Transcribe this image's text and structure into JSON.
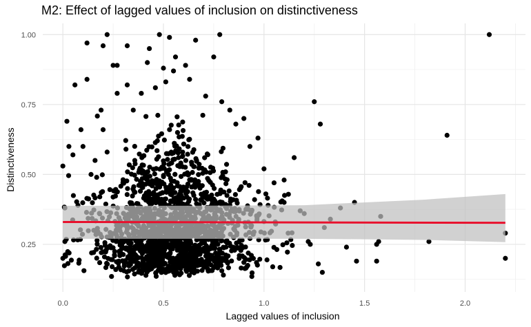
{
  "chart_data": {
    "type": "scatter",
    "title": "M2: Effect of lagged values of inclusion on distinctiveness",
    "xlabel": "Lagged values of inclusion",
    "ylabel": "Distinctiveness",
    "xlim": [
      -0.1,
      2.3
    ],
    "ylim": [
      0.08,
      1.04
    ],
    "xticks": [
      0.0,
      0.5,
      1.0,
      1.5,
      2.0
    ],
    "xtick_labels": [
      "0.0",
      "0.5",
      "1.0",
      "1.5",
      "2.0"
    ],
    "yticks": [
      0.25,
      0.5,
      0.75,
      1.0
    ],
    "ytick_labels": [
      "0.25",
      "0.50",
      "0.75",
      "1.00"
    ],
    "grid": true,
    "theme": "minimal",
    "point_color": "#000000",
    "fit_line_color": "#e8112d",
    "ci_band_color": "#bfbfbf",
    "fit_line": {
      "x": [
        0.0,
        2.2
      ],
      "y": [
        0.33,
        0.327
      ]
    },
    "ci_band": {
      "x": [
        0.0,
        0.6,
        1.2,
        1.8,
        2.2
      ],
      "lower": [
        0.27,
        0.27,
        0.27,
        0.266,
        0.258
      ],
      "upper": [
        0.388,
        0.388,
        0.39,
        0.41,
        0.43
      ]
    },
    "cluster_note_points": [
      [
        0.0,
        0.53
      ],
      [
        0.01,
        0.38
      ],
      [
        0.01,
        0.26
      ],
      [
        0.0,
        0.2
      ],
      [
        0.02,
        0.69
      ],
      [
        0.03,
        0.6
      ],
      [
        0.05,
        0.57
      ],
      [
        0.06,
        0.82
      ],
      [
        0.09,
        0.66
      ],
      [
        0.1,
        0.6
      ],
      [
        0.12,
        0.84
      ],
      [
        0.12,
        0.97
      ],
      [
        0.14,
        0.5
      ],
      [
        0.16,
        0.55
      ],
      [
        0.19,
        0.73
      ],
      [
        0.2,
        0.66
      ],
      [
        0.2,
        0.96
      ],
      [
        0.22,
        1.0
      ],
      [
        0.22,
        0.58
      ],
      [
        0.25,
        0.89
      ],
      [
        0.27,
        0.89
      ],
      [
        0.27,
        0.79
      ],
      [
        0.32,
        0.96
      ],
      [
        0.32,
        0.82
      ],
      [
        0.35,
        0.73
      ],
      [
        0.39,
        0.79
      ],
      [
        0.42,
        0.9
      ],
      [
        0.43,
        0.95
      ],
      [
        0.46,
        0.81
      ],
      [
        0.48,
        1.0
      ],
      [
        0.5,
        0.88
      ],
      [
        0.53,
        0.99
      ],
      [
        0.55,
        0.87
      ],
      [
        0.56,
        0.92
      ],
      [
        0.61,
        0.89
      ],
      [
        0.63,
        0.84
      ],
      [
        0.66,
        0.98
      ],
      [
        0.71,
        0.78
      ],
      [
        0.75,
        0.92
      ],
      [
        0.78,
        1.0
      ],
      [
        0.79,
        0.76
      ],
      [
        0.83,
        0.73
      ],
      [
        0.86,
        0.68
      ],
      [
        0.9,
        0.7
      ],
      [
        0.93,
        0.6
      ],
      [
        0.97,
        0.63
      ],
      [
        1.0,
        0.52
      ],
      [
        1.05,
        0.47
      ],
      [
        1.1,
        0.48
      ],
      [
        1.1,
        0.4
      ],
      [
        1.12,
        0.29
      ],
      [
        1.15,
        0.56
      ],
      [
        1.18,
        0.37
      ],
      [
        1.2,
        0.36
      ],
      [
        1.23,
        0.25
      ],
      [
        1.25,
        0.76
      ],
      [
        1.28,
        0.68
      ],
      [
        1.27,
        0.18
      ],
      [
        1.29,
        0.15
      ],
      [
        1.22,
        0.26
      ],
      [
        1.3,
        0.31
      ],
      [
        1.33,
        0.34
      ],
      [
        1.38,
        0.38
      ],
      [
        1.41,
        0.24
      ],
      [
        1.45,
        0.4
      ],
      [
        1.46,
        0.19
      ],
      [
        1.56,
        0.25
      ],
      [
        1.57,
        0.26
      ],
      [
        1.58,
        0.35
      ],
      [
        1.56,
        0.19
      ],
      [
        1.82,
        0.26
      ],
      [
        1.91,
        0.64
      ],
      [
        2.12,
        1.0
      ],
      [
        2.2,
        0.29
      ],
      [
        2.2,
        0.2
      ]
    ]
  }
}
